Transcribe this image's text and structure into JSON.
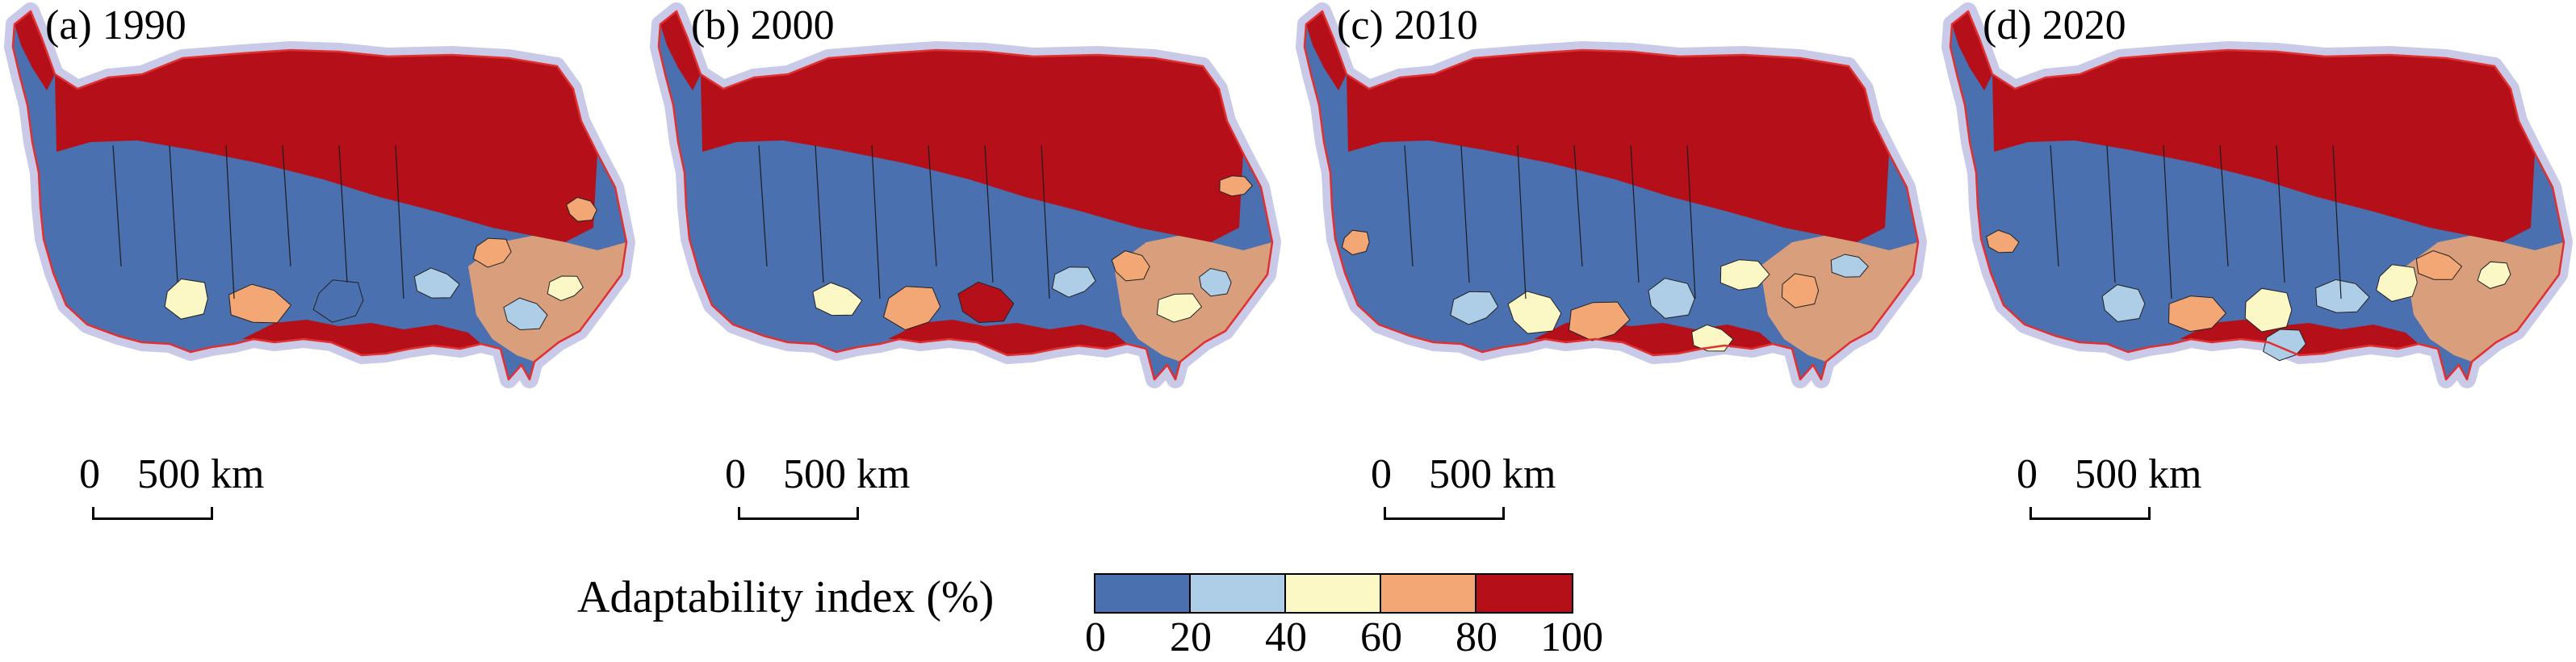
{
  "panels": [
    {
      "title": "(a) 1990",
      "scale": {
        "label_start": "0",
        "label_end": "500 km"
      }
    },
    {
      "title": "(b) 2000",
      "scale": {
        "label_start": "0",
        "label_end": "500 km"
      }
    },
    {
      "title": "(c) 2010",
      "scale": {
        "label_start": "0",
        "label_end": "500 km"
      }
    },
    {
      "title": "(d) 2020",
      "scale": {
        "label_start": "0",
        "label_end": "500 km"
      }
    }
  ],
  "legend": {
    "title": "Adaptability index (%)",
    "ticks": [
      "0",
      "20",
      "40",
      "60",
      "80",
      "100"
    ],
    "classes": [
      {
        "range": "0-20",
        "color": "#4a70b0"
      },
      {
        "range": "20-40",
        "color": "#aecde6"
      },
      {
        "range": "40-60",
        "color": "#fcf8c6"
      },
      {
        "range": "60-80",
        "color": "#f2a774"
      },
      {
        "range": "80-100",
        "color": "#b5101a"
      }
    ]
  },
  "style": {
    "halo_color": "#c9c9e8",
    "outline_color": "#e03030"
  }
}
